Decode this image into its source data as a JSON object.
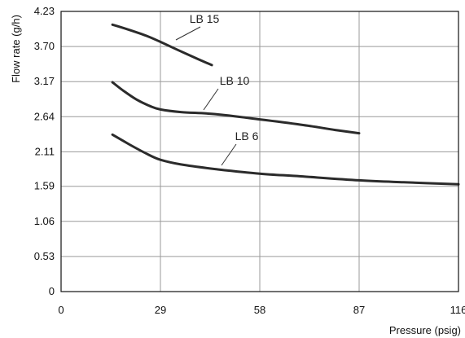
{
  "chart_data": {
    "type": "line",
    "xlabel": "Pressure (psig)",
    "ylabel": "Flow rate (g/h)",
    "xlim": [
      0,
      116
    ],
    "ylim": [
      0,
      4.23
    ],
    "x_ticks": [
      0,
      29,
      58,
      87,
      116
    ],
    "x_tick_labels": [
      "0",
      "29",
      "58",
      "87",
      "116"
    ],
    "y_ticks": [
      0,
      0.53,
      1.06,
      1.59,
      2.11,
      2.64,
      3.17,
      3.7,
      4.23
    ],
    "y_tick_labels": [
      "0",
      "0.53",
      "1.06",
      "1.59",
      "2.11",
      "2.64",
      "3.17",
      "3.70",
      "4.23"
    ],
    "grid": true,
    "series": [
      {
        "name": "LB 15",
        "x": [
          15,
          20,
          25,
          29,
          34,
          40,
          44
        ],
        "y": [
          4.03,
          3.95,
          3.86,
          3.77,
          3.65,
          3.51,
          3.42
        ]
      },
      {
        "name": "LB 10",
        "x": [
          15,
          18,
          22,
          26,
          29,
          35,
          45,
          58,
          70,
          80,
          87
        ],
        "y": [
          3.16,
          3.04,
          2.9,
          2.8,
          2.75,
          2.71,
          2.68,
          2.6,
          2.52,
          2.44,
          2.39
        ]
      },
      {
        "name": "LB 6",
        "x": [
          15,
          20,
          25,
          29,
          35,
          45,
          58,
          70,
          87,
          100,
          116
        ],
        "y": [
          2.37,
          2.22,
          2.08,
          1.99,
          1.92,
          1.85,
          1.78,
          1.74,
          1.68,
          1.65,
          1.62
        ]
      }
    ]
  }
}
